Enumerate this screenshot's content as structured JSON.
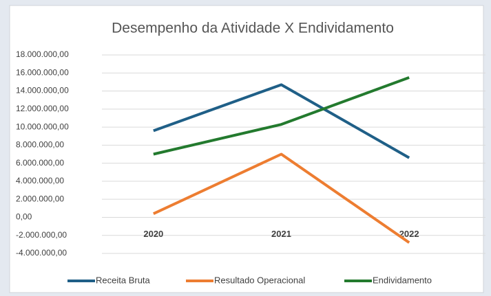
{
  "chart_data": {
    "type": "line",
    "title": "Desempenho da Atividade X Endividamento",
    "categories": [
      "2020",
      "2021",
      "2022"
    ],
    "series": [
      {
        "name": "Receita Bruta",
        "color": "#1f5f87",
        "values": [
          9600000,
          14700000,
          6600000
        ]
      },
      {
        "name": "Resultado Operacional",
        "color": "#ed7d31",
        "values": [
          400000,
          7000000,
          -2800000
        ]
      },
      {
        "name": "Endividamento",
        "color": "#237a2e",
        "values": [
          7000000,
          10300000,
          15500000
        ]
      }
    ],
    "ylim": [
      -4000000,
      18000000
    ],
    "yticks": [
      {
        "value": -4000000,
        "label": "-4.000.000,00"
      },
      {
        "value": -2000000,
        "label": "-2.000.000,00"
      },
      {
        "value": 0,
        "label": "0,00"
      },
      {
        "value": 2000000,
        "label": "2.000.000,00"
      },
      {
        "value": 4000000,
        "label": "4.000.000,00"
      },
      {
        "value": 6000000,
        "label": "6.000.000,00"
      },
      {
        "value": 8000000,
        "label": "8.000.000,00"
      },
      {
        "value": 10000000,
        "label": "10.000.000,00"
      },
      {
        "value": 12000000,
        "label": "12.000.000,00"
      },
      {
        "value": 14000000,
        "label": "14.000.000,00"
      },
      {
        "value": 16000000,
        "label": "16.000.000,00"
      },
      {
        "value": 18000000,
        "label": "18.000.000,00"
      }
    ],
    "grid": true,
    "legend": "bottom"
  }
}
